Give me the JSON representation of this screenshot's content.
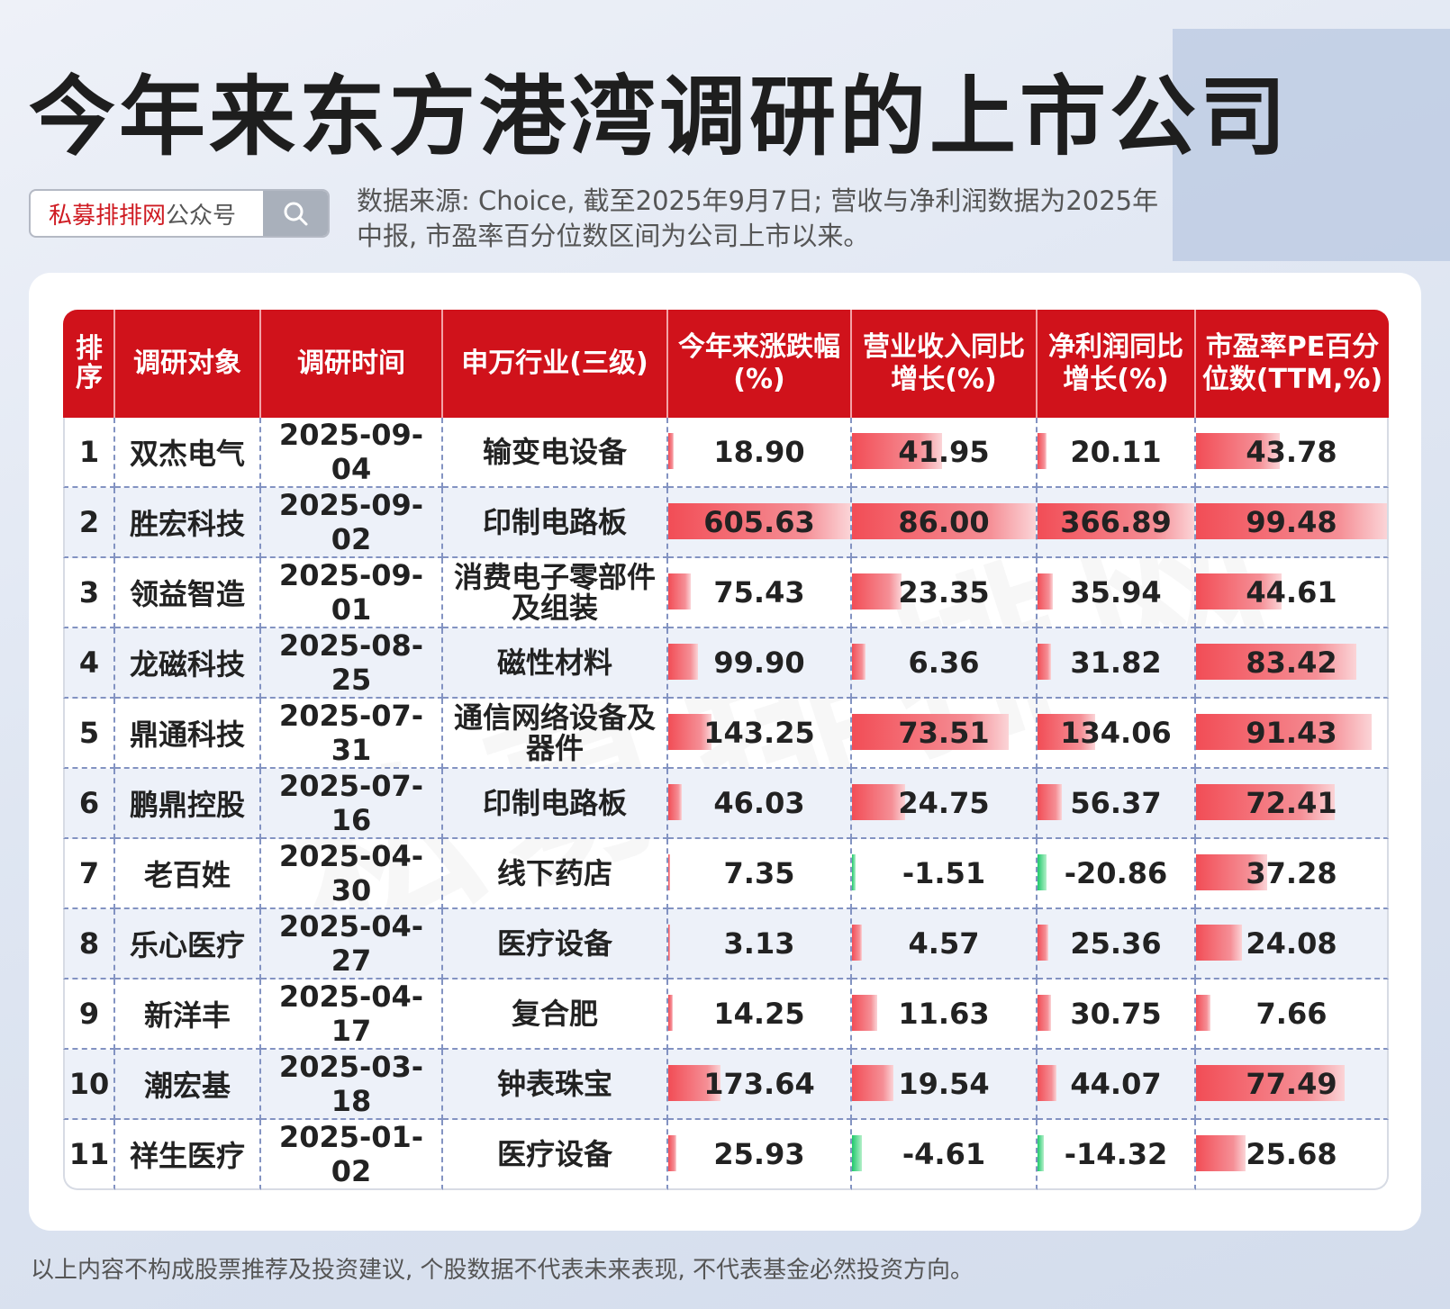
{
  "title": "今年来东方港湾调研的上市公司",
  "search": {
    "brand": "私募排排网",
    "suffix": "公众号"
  },
  "source_note": "数据来源: Choice, 截至2025年9月7日; 营收与净利润数据为2025年中报, 市盈率百分位数区间为公司上市以来。",
  "watermark": "私募排排网",
  "columns": [
    "排序",
    "调研对象",
    "调研时间",
    "申万行业(三级)",
    "今年来涨跌幅(%)",
    "营业收入同比增长(%)",
    "净利润同比增长(%)",
    "市盈率PE百分位数(TTM,%)"
  ],
  "colors": {
    "header": "#d0121b",
    "positive_bar": "#f24d56",
    "negative_bar": "#1ec96b"
  },
  "rows": [
    {
      "rank": "1",
      "company": "双杰电气",
      "date": "2025-09-04",
      "industry": "输变电设备",
      "ytd": 18.9,
      "revenue_growth": 41.95,
      "profit_growth": 20.11,
      "pe_percentile": 43.78
    },
    {
      "rank": "2",
      "company": "胜宏科技",
      "date": "2025-09-02",
      "industry": "印制电路板",
      "ytd": 605.63,
      "revenue_growth": 86.0,
      "profit_growth": 366.89,
      "pe_percentile": 99.48
    },
    {
      "rank": "3",
      "company": "领益智造",
      "date": "2025-09-01",
      "industry": "消费电子零部件及组装",
      "ytd": 75.43,
      "revenue_growth": 23.35,
      "profit_growth": 35.94,
      "pe_percentile": 44.61
    },
    {
      "rank": "4",
      "company": "龙磁科技",
      "date": "2025-08-25",
      "industry": "磁性材料",
      "ytd": 99.9,
      "revenue_growth": 6.36,
      "profit_growth": 31.82,
      "pe_percentile": 83.42
    },
    {
      "rank": "5",
      "company": "鼎通科技",
      "date": "2025-07-31",
      "industry": "通信网络设备及器件",
      "ytd": 143.25,
      "revenue_growth": 73.51,
      "profit_growth": 134.06,
      "pe_percentile": 91.43
    },
    {
      "rank": "6",
      "company": "鹏鼎控股",
      "date": "2025-07-16",
      "industry": "印制电路板",
      "ytd": 46.03,
      "revenue_growth": 24.75,
      "profit_growth": 56.37,
      "pe_percentile": 72.41
    },
    {
      "rank": "7",
      "company": "老百姓",
      "date": "2025-04-30",
      "industry": "线下药店",
      "ytd": 7.35,
      "revenue_growth": -1.51,
      "profit_growth": -20.86,
      "pe_percentile": 37.28
    },
    {
      "rank": "8",
      "company": "乐心医疗",
      "date": "2025-04-27",
      "industry": "医疗设备",
      "ytd": 3.13,
      "revenue_growth": 4.57,
      "profit_growth": 25.36,
      "pe_percentile": 24.08
    },
    {
      "rank": "9",
      "company": "新洋丰",
      "date": "2025-04-17",
      "industry": "复合肥",
      "ytd": 14.25,
      "revenue_growth": 11.63,
      "profit_growth": 30.75,
      "pe_percentile": 7.66
    },
    {
      "rank": "10",
      "company": "潮宏基",
      "date": "2025-03-18",
      "industry": "钟表珠宝",
      "ytd": 173.64,
      "revenue_growth": 19.54,
      "profit_growth": 44.07,
      "pe_percentile": 77.49
    },
    {
      "rank": "11",
      "company": "祥生医疗",
      "date": "2025-01-02",
      "industry": "医疗设备",
      "ytd": 25.93,
      "revenue_growth": -4.61,
      "profit_growth": -14.32,
      "pe_percentile": 25.68
    }
  ],
  "disclaimer": "以上内容不构成股票推荐及投资建议, 个股数据不代表未来表现, 不代表基金必然投资方向。"
}
